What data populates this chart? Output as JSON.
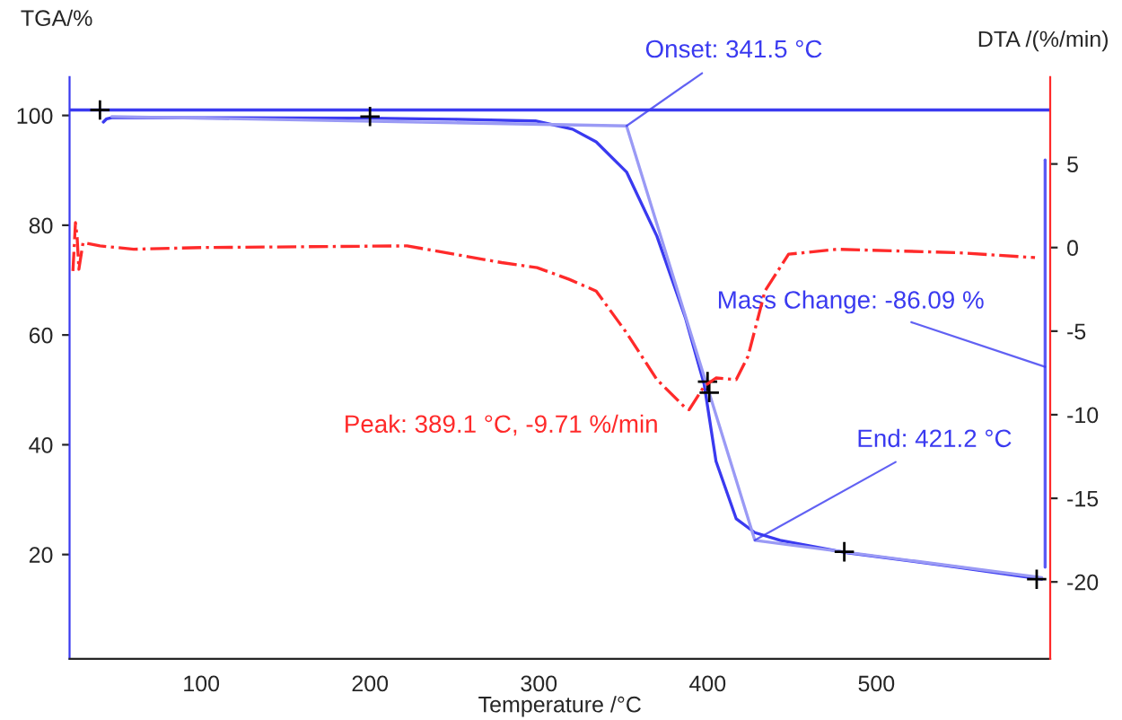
{
  "chart_data": {
    "type": "line",
    "xlabel": "Temperature /°C",
    "ylabel": "TGA/%",
    "y2label": "DTA /(%/min)",
    "xlim": [
      22,
      603
    ],
    "xticks": [
      100,
      200,
      300,
      400,
      500
    ],
    "ylim": [
      1,
      107
    ],
    "yticks": [
      20,
      40,
      60,
      80,
      100
    ],
    "y2lim": [
      -24.6,
      10.2
    ],
    "y2ticks": [
      {
        "value": 5,
        "label": "5"
      },
      {
        "value": 0,
        "label": "0"
      },
      {
        "value": -5,
        "label": "-5"
      },
      {
        "value": -10,
        "label": "-10"
      },
      {
        "value": -15,
        "label": "-15"
      },
      {
        "value": -20,
        "label": "-20"
      }
    ],
    "grid": false,
    "series": [
      {
        "color": "#3a3af0",
        "line_style": "solid",
        "x": [
          42,
          44,
          47,
          60,
          100,
          200,
          250,
          298,
          320,
          334,
          352,
          370,
          387,
          398,
          405,
          417,
          428,
          443,
          483,
          548,
          598
        ],
        "values": [
          98.8,
          99.4,
          99.6,
          99.6,
          99.6,
          99.5,
          99.3,
          99,
          97.5,
          95.2,
          89.7,
          78,
          63,
          51,
          37,
          26.5,
          24,
          22.6,
          20.3,
          17.7,
          15.5
        ]
      },
      {
        "color": "#9a9af5",
        "line_style": "solid",
        "x": [
          47,
          352,
          428,
          598
        ],
        "values": [
          99.8,
          98.1,
          22.6,
          15.8
        ]
      },
      {
        "color": "#ff2a2a",
        "line_style": "dashdot",
        "axis": "y2",
        "x": [
          24,
          25.5,
          26.5,
          27.5,
          30,
          40,
          60,
          100,
          222,
          278,
          299,
          318,
          334,
          352,
          370,
          387,
          389.1,
          398,
          405,
          417,
          424,
          434,
          448,
          477,
          547,
          594
        ],
        "values": [
          -1.4,
          1.5,
          0.6,
          -1.3,
          0.3,
          0.1,
          -0.1,
          0,
          0.1,
          -0.9,
          -1.2,
          -1.9,
          -2.6,
          -5.1,
          -7.9,
          -9.6,
          -9.7,
          -8.3,
          -7.8,
          -7.9,
          -6.5,
          -2.6,
          -0.4,
          -0.1,
          -0.3,
          -0.6
        ]
      },
      {
        "type": "scatter",
        "color": "#000000",
        "marker": "cross",
        "x": [
          40,
          200,
          400,
          401,
          481,
          595
        ],
        "values": [
          101,
          99.8,
          51.5,
          49.5,
          20.5,
          15.5
        ]
      },
      {
        "color": "#5a5af5",
        "line_style": "solid",
        "x": [
          600,
          600
        ],
        "values": [
          91.9,
          17.7
        ]
      }
    ],
    "ref_lines": [
      {
        "axis": "y",
        "value": 101,
        "color": "#3a3af0"
      }
    ],
    "annotations": [
      {
        "text": "Onset: 341.5 °C",
        "x": 352,
        "y": 98.1
      },
      "Peak: 389.1 °C, -9.71 %/min",
      {
        "text": "Mass Change: -86.09 %",
        "x": 600,
        "y": 54.2
      },
      {
        "text": "End: 421.2 °C",
        "x": 428,
        "y": 22.6
      }
    ]
  }
}
